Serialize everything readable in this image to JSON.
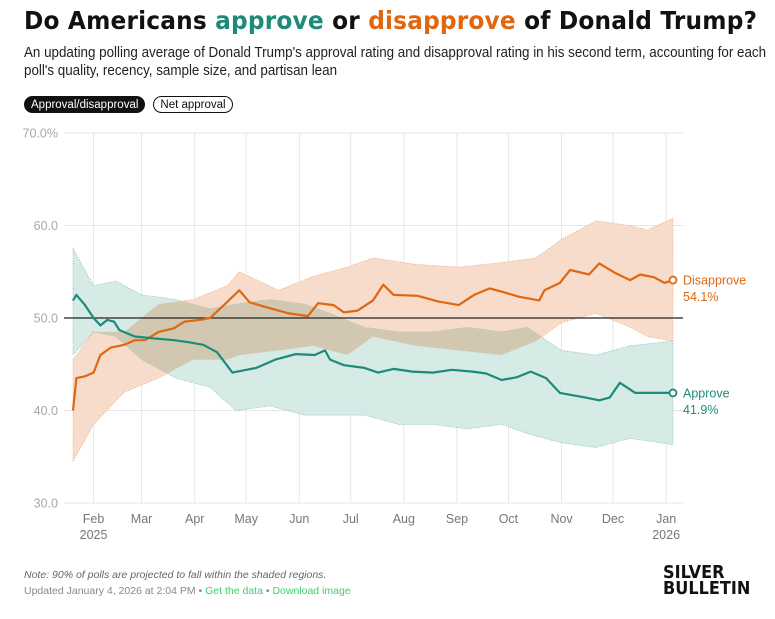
{
  "header": {
    "title_prefix": "Do Americans ",
    "title_approve": "approve",
    "title_mid": " or ",
    "title_disapprove": "disapprove",
    "title_suffix": " of Donald Trump?",
    "subtitle": "An updating polling average of Donald Trump's approval rating and disapproval rating in his second term, accounting for each poll's quality, recency, sample size, and partisan lean"
  },
  "toggles": [
    {
      "label": "Approval/disapproval",
      "active": true
    },
    {
      "label": "Net approval",
      "active": false
    }
  ],
  "colors": {
    "approve": "#1e8a7a",
    "disapprove": "#e0660f",
    "approve_band": "#cfe6e2",
    "disapprove_band": "#f8dccb",
    "overlap_band": "#d2c8b2"
  },
  "footer": {
    "note": "Note: 90% of polls are projected to fall within the shaded regions.",
    "updated": "Updated January 4, 2026 at 2:04 PM",
    "sep": " • ",
    "get_data": "Get the data",
    "download": "Download image",
    "brand_line1": "SILVER",
    "brand_line2": "BULLETIN"
  },
  "chart_data": {
    "type": "line",
    "title": "Do Americans approve or disapprove of Donald Trump?",
    "xlabel": "",
    "ylabel": "",
    "x_unit": "days since 2025-01-20",
    "ylim": [
      30,
      70
    ],
    "yticks": [
      {
        "value": 70,
        "label": "70.0%"
      },
      {
        "value": 60,
        "label": "60.0"
      },
      {
        "value": 50,
        "label": "50.0"
      },
      {
        "value": 40,
        "label": "40.0"
      },
      {
        "value": 30,
        "label": "30.0"
      }
    ],
    "xticks": [
      {
        "day": 12,
        "label": "Feb",
        "sub": "2025"
      },
      {
        "day": 40,
        "label": "Mar",
        "sub": ""
      },
      {
        "day": 71,
        "label": "Apr",
        "sub": ""
      },
      {
        "day": 101,
        "label": "May",
        "sub": ""
      },
      {
        "day": 132,
        "label": "Jun",
        "sub": ""
      },
      {
        "day": 162,
        "label": "Jul",
        "sub": ""
      },
      {
        "day": 193,
        "label": "Aug",
        "sub": ""
      },
      {
        "day": 224,
        "label": "Sep",
        "sub": ""
      },
      {
        "day": 254,
        "label": "Oct",
        "sub": ""
      },
      {
        "day": 285,
        "label": "Nov",
        "sub": ""
      },
      {
        "day": 315,
        "label": "Dec",
        "sub": ""
      },
      {
        "day": 346,
        "label": "Jan",
        "sub": "2026"
      }
    ],
    "xlim": [
      0,
      350
    ],
    "grid": true,
    "reference_line": 50,
    "series": [
      {
        "name": "Disapprove",
        "final_label": "54.1%",
        "points": [
          [
            0,
            40.0
          ],
          [
            2,
            43.5
          ],
          [
            7,
            43.7
          ],
          [
            12,
            44.1
          ],
          [
            16,
            46.0
          ],
          [
            22,
            46.8
          ],
          [
            30,
            47.1
          ],
          [
            36,
            47.6
          ],
          [
            42,
            47.6
          ],
          [
            50,
            48.5
          ],
          [
            59,
            48.9
          ],
          [
            65,
            49.6
          ],
          [
            74,
            49.8
          ],
          [
            80,
            50.0
          ],
          [
            88,
            51.4
          ],
          [
            97,
            53.0
          ],
          [
            103,
            51.7
          ],
          [
            114,
            51.1
          ],
          [
            126,
            50.5
          ],
          [
            137,
            50.2
          ],
          [
            143,
            51.6
          ],
          [
            152,
            51.4
          ],
          [
            158,
            50.6
          ],
          [
            166,
            50.8
          ],
          [
            175,
            51.9
          ],
          [
            181,
            53.6
          ],
          [
            187,
            52.5
          ],
          [
            201,
            52.4
          ],
          [
            213,
            51.8
          ],
          [
            225,
            51.4
          ],
          [
            234,
            52.5
          ],
          [
            243,
            53.2
          ],
          [
            251,
            52.8
          ],
          [
            260,
            52.3
          ],
          [
            272,
            51.9
          ],
          [
            275,
            53.0
          ],
          [
            284,
            53.8
          ],
          [
            290,
            55.2
          ],
          [
            301,
            54.7
          ],
          [
            307,
            55.9
          ],
          [
            316,
            54.9
          ],
          [
            325,
            54.1
          ],
          [
            331,
            54.7
          ],
          [
            339,
            54.4
          ],
          [
            345,
            53.8
          ],
          [
            350,
            54.1
          ]
        ],
        "band": [
          [
            0,
            34.5,
            45.5
          ],
          [
            12,
            38.5,
            48.5
          ],
          [
            30,
            42.0,
            48.5
          ],
          [
            50,
            43.5,
            51.5
          ],
          [
            70,
            45.5,
            52.0
          ],
          [
            90,
            45.5,
            53.5
          ],
          [
            97,
            46.0,
            55.0
          ],
          [
            120,
            46.5,
            53.0
          ],
          [
            140,
            47.0,
            54.5
          ],
          [
            160,
            46.0,
            55.5
          ],
          [
            175,
            48.0,
            56.5
          ],
          [
            200,
            47.0,
            55.8
          ],
          [
            225,
            46.5,
            55.5
          ],
          [
            250,
            46.0,
            56.0
          ],
          [
            270,
            47.5,
            56.5
          ],
          [
            285,
            49.5,
            58.5
          ],
          [
            305,
            50.5,
            60.5
          ],
          [
            325,
            49.0,
            60.0
          ],
          [
            335,
            48.0,
            59.5
          ],
          [
            350,
            47.5,
            60.8
          ]
        ]
      },
      {
        "name": "Approve",
        "final_label": "41.9%",
        "points": [
          [
            0,
            51.9
          ],
          [
            2,
            52.5
          ],
          [
            7,
            51.4
          ],
          [
            12,
            50.0
          ],
          [
            16,
            49.2
          ],
          [
            20,
            49.8
          ],
          [
            24,
            49.6
          ],
          [
            27,
            48.7
          ],
          [
            36,
            48.0
          ],
          [
            47,
            47.8
          ],
          [
            59,
            47.6
          ],
          [
            67,
            47.4
          ],
          [
            76,
            47.1
          ],
          [
            84,
            46.3
          ],
          [
            93,
            44.1
          ],
          [
            107,
            44.6
          ],
          [
            118,
            45.5
          ],
          [
            130,
            46.1
          ],
          [
            141,
            46.0
          ],
          [
            147,
            46.5
          ],
          [
            150,
            45.5
          ],
          [
            158,
            44.9
          ],
          [
            170,
            44.6
          ],
          [
            178,
            44.1
          ],
          [
            187,
            44.5
          ],
          [
            198,
            44.2
          ],
          [
            210,
            44.1
          ],
          [
            221,
            44.4
          ],
          [
            233,
            44.2
          ],
          [
            241,
            44.0
          ],
          [
            250,
            43.3
          ],
          [
            259,
            43.6
          ],
          [
            267,
            44.2
          ],
          [
            276,
            43.5
          ],
          [
            284,
            41.9
          ],
          [
            299,
            41.4
          ],
          [
            307,
            41.1
          ],
          [
            313,
            41.4
          ],
          [
            319,
            43.0
          ],
          [
            328,
            41.9
          ],
          [
            337,
            41.9
          ],
          [
            350,
            41.9
          ]
        ],
        "band": [
          [
            0,
            46.0,
            57.5
          ],
          [
            12,
            48.5,
            53.5
          ],
          [
            25,
            48.0,
            54.0
          ],
          [
            40,
            45.5,
            52.5
          ],
          [
            60,
            43.5,
            52.0
          ],
          [
            80,
            42.5,
            51.0
          ],
          [
            95,
            40.0,
            51.5
          ],
          [
            115,
            40.5,
            52.0
          ],
          [
            135,
            39.5,
            51.5
          ],
          [
            150,
            39.5,
            50.5
          ],
          [
            170,
            39.5,
            49.0
          ],
          [
            190,
            38.5,
            48.5
          ],
          [
            210,
            38.5,
            48.5
          ],
          [
            230,
            38.0,
            49.0
          ],
          [
            250,
            38.5,
            48.5
          ],
          [
            265,
            37.5,
            49.0
          ],
          [
            285,
            36.5,
            46.5
          ],
          [
            305,
            36.0,
            46.0
          ],
          [
            325,
            37.0,
            47.0
          ],
          [
            350,
            36.3,
            47.5
          ]
        ]
      }
    ]
  }
}
